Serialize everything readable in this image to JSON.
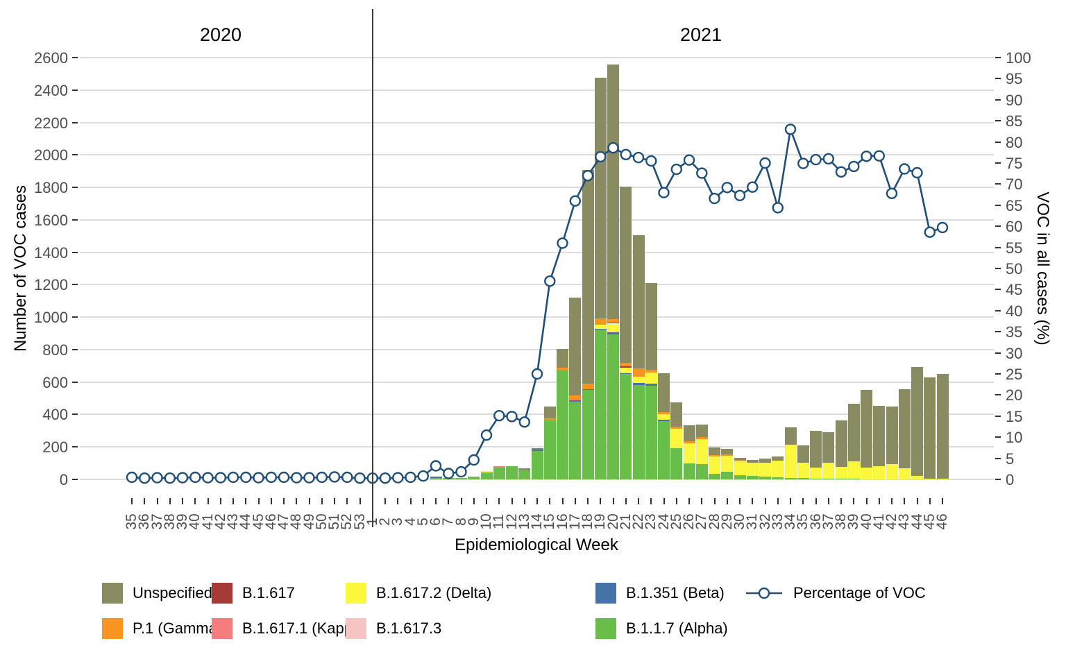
{
  "panels": {
    "left_year": "2020",
    "right_year": "2021"
  },
  "axes": {
    "x": {
      "title": "Epidemiological Week"
    },
    "y_left": {
      "title": "Number of VOC cases",
      "ticks": [
        0,
        200,
        400,
        600,
        800,
        1000,
        1200,
        1400,
        1600,
        1800,
        2000,
        2200,
        2400,
        2600
      ]
    },
    "y_right": {
      "title": "VOC in all cases (%)",
      "ticks": [
        0,
        5,
        10,
        15,
        20,
        25,
        30,
        35,
        40,
        45,
        50,
        55,
        60,
        65,
        70,
        75,
        80,
        85,
        90,
        95,
        100
      ]
    }
  },
  "legend": {
    "items": [
      {
        "label": "Unspecified",
        "color": "#8A8B60",
        "type": "swatch"
      },
      {
        "label": "P.1 (Gamma)",
        "color": "#F8941F",
        "type": "swatch"
      },
      {
        "label": "B.1.617",
        "color": "#A53A35",
        "type": "swatch"
      },
      {
        "label": "B.1.617.1 (Kappa)",
        "color": "#F57D7D",
        "type": "swatch"
      },
      {
        "label": "B.1.617.2 (Delta)",
        "color": "#FAF73C",
        "type": "swatch"
      },
      {
        "label": "B.1.617.3",
        "color": "#F8C3C3",
        "type": "swatch"
      },
      {
        "label": "B.1.351 (Beta)",
        "color": "#4573A7",
        "type": "swatch"
      },
      {
        "label": "B.1.1.7 (Alpha)",
        "color": "#69BE4A",
        "type": "swatch"
      },
      {
        "label": "Percentage of VOC",
        "color": "#1F4E79",
        "type": "line"
      }
    ]
  },
  "chart_data": [
    {
      "type": "bar",
      "stacked": true,
      "ylabel": "Number of VOC cases",
      "ylim": [
        0,
        2600
      ],
      "grid": true,
      "year_groups": [
        {
          "label": "2020",
          "weeks": "35-53"
        },
        {
          "label": "2021",
          "weeks": "1-46"
        }
      ],
      "categories": [
        "35",
        "36",
        "37",
        "38",
        "39",
        "40",
        "41",
        "42",
        "43",
        "44",
        "45",
        "46",
        "47",
        "48",
        "49",
        "50",
        "51",
        "52",
        "53",
        "1",
        "2",
        "3",
        "4",
        "5",
        "6",
        "7",
        "8",
        "9",
        "10",
        "11",
        "12",
        "13",
        "14",
        "15",
        "16",
        "17",
        "18",
        "19",
        "20",
        "21",
        "22",
        "23",
        "24",
        "25",
        "26",
        "27",
        "28",
        "29",
        "30",
        "31",
        "32",
        "33",
        "34",
        "35",
        "36",
        "37",
        "38",
        "39",
        "40",
        "41",
        "42",
        "43",
        "44",
        "45",
        "46"
      ],
      "series": [
        {
          "name": "B.1.1.7 (Alpha)",
          "color": "#69BE4A",
          "values": [
            0,
            0,
            0,
            0,
            0,
            0,
            0,
            0,
            0,
            0,
            0,
            0,
            0,
            0,
            0,
            0,
            0,
            3,
            0,
            0,
            0,
            0,
            0,
            0,
            7,
            7,
            9,
            16,
            42,
            72,
            81,
            57,
            175,
            365,
            670,
            480,
            550,
            922,
            895,
            650,
            582,
            579,
            361,
            192,
            100,
            93,
            36,
            47,
            26,
            21,
            16,
            11,
            10,
            7,
            6,
            4,
            4,
            3,
            0,
            0,
            0,
            0,
            0,
            0,
            0
          ]
        },
        {
          "name": "B.1.351 (Beta)",
          "color": "#4573A7",
          "values": [
            0,
            0,
            0,
            0,
            0,
            0,
            0,
            0,
            0,
            0,
            0,
            0,
            0,
            0,
            0,
            0,
            0,
            0,
            0,
            0,
            0,
            0,
            0,
            0,
            10,
            0,
            0,
            0,
            0,
            0,
            0,
            0,
            8,
            0,
            0,
            6,
            6,
            8,
            10,
            7,
            14,
            13,
            7,
            0,
            0,
            0,
            0,
            0,
            0,
            0,
            0,
            0,
            0,
            0,
            0,
            0,
            0,
            0,
            0,
            0,
            0,
            0,
            0,
            0,
            0
          ]
        },
        {
          "name": "B.1.617.3",
          "color": "#F8C3C3",
          "values": [
            0,
            0,
            0,
            0,
            0,
            0,
            0,
            0,
            0,
            0,
            0,
            0,
            0,
            0,
            0,
            0,
            0,
            0,
            0,
            0,
            0,
            0,
            0,
            0,
            0,
            0,
            0,
            0,
            0,
            0,
            0,
            0,
            0,
            0,
            0,
            0,
            0,
            0,
            4,
            2,
            0,
            0,
            0,
            0,
            0,
            0,
            0,
            0,
            0,
            0,
            0,
            0,
            0,
            0,
            0,
            0,
            0,
            0,
            0,
            0,
            0,
            0,
            0,
            0,
            0
          ]
        },
        {
          "name": "B.1.617.2 (Delta)",
          "color": "#FAF73C",
          "values": [
            0,
            0,
            0,
            0,
            0,
            0,
            0,
            0,
            0,
            0,
            0,
            0,
            0,
            0,
            0,
            0,
            0,
            0,
            0,
            0,
            0,
            0,
            0,
            0,
            0,
            0,
            0,
            0,
            8,
            0,
            0,
            0,
            0,
            0,
            0,
            0,
            0,
            24,
            51,
            31,
            36,
            66,
            36,
            121,
            123,
            157,
            105,
            98,
            83,
            80,
            88,
            104,
            204,
            97,
            68,
            97,
            74,
            107,
            71,
            80,
            94,
            68,
            21,
            6,
            4
          ]
        },
        {
          "name": "B.1.617.1 (Kappa)",
          "color": "#F57D7D",
          "values": [
            0,
            0,
            0,
            0,
            0,
            0,
            0,
            0,
            0,
            0,
            0,
            0,
            0,
            0,
            0,
            0,
            0,
            0,
            0,
            0,
            0,
            0,
            0,
            0,
            0,
            0,
            0,
            0,
            0,
            10,
            0,
            0,
            0,
            0,
            0,
            5,
            0,
            0,
            0,
            0,
            0,
            0,
            0,
            0,
            0,
            0,
            0,
            0,
            0,
            0,
            0,
            0,
            0,
            0,
            0,
            0,
            0,
            0,
            0,
            0,
            0,
            0,
            0,
            0,
            0
          ]
        },
        {
          "name": "B.1.617",
          "color": "#A53A35",
          "values": [
            0,
            0,
            0,
            0,
            0,
            0,
            0,
            0,
            0,
            0,
            0,
            0,
            0,
            0,
            0,
            0,
            0,
            0,
            0,
            0,
            0,
            0,
            0,
            0,
            0,
            0,
            0,
            0,
            0,
            0,
            0,
            0,
            0,
            0,
            0,
            0,
            0,
            0,
            8,
            7,
            0,
            0,
            0,
            0,
            0,
            0,
            0,
            0,
            0,
            0,
            0,
            0,
            0,
            0,
            0,
            0,
            0,
            0,
            0,
            0,
            0,
            0,
            0,
            0,
            0
          ]
        },
        {
          "name": "P.1 (Gamma)",
          "color": "#F8941F",
          "values": [
            0,
            0,
            0,
            0,
            0,
            0,
            0,
            0,
            0,
            0,
            0,
            0,
            0,
            0,
            0,
            0,
            0,
            0,
            0,
            0,
            0,
            0,
            0,
            0,
            0,
            0,
            0,
            0,
            0,
            0,
            0,
            0,
            0,
            12,
            18,
            25,
            33,
            36,
            20,
            21,
            54,
            17,
            10,
            11,
            14,
            11,
            9,
            9,
            10,
            0,
            0,
            0,
            0,
            0,
            0,
            0,
            0,
            0,
            0,
            0,
            0,
            0,
            0,
            0,
            0
          ]
        },
        {
          "name": "Unspecified",
          "color": "#8A8B60",
          "values": [
            0,
            0,
            0,
            0,
            0,
            0,
            0,
            0,
            0,
            0,
            0,
            0,
            0,
            0,
            0,
            0,
            0,
            0,
            0,
            0,
            0,
            0,
            0,
            0,
            0,
            0,
            0,
            0,
            0,
            0,
            0,
            10,
            10,
            70,
            117,
            604,
            1320,
            1485,
            1570,
            1087,
            819,
            535,
            242,
            150,
            98,
            78,
            47,
            33,
            14,
            17,
            26,
            28,
            107,
            107,
            225,
            191,
            286,
            358,
            479,
            373,
            355,
            488,
            670,
            621,
            645
          ]
        }
      ]
    },
    {
      "type": "line",
      "name": "Percentage of VOC",
      "color": "#1F4E79",
      "marker": "open-circle",
      "axis": "right",
      "ylabel": "VOC in all cases (%)",
      "ylim": [
        0,
        100
      ],
      "values": [
        0.5,
        0.3,
        0.4,
        0.3,
        0.4,
        0.5,
        0.4,
        0.4,
        0.5,
        0.5,
        0.4,
        0.5,
        0.5,
        0.4,
        0.4,
        0.5,
        0.6,
        0.5,
        0.3,
        0.3,
        0.3,
        0.4,
        0.5,
        0.8,
        3.2,
        1.4,
        1.8,
        4.6,
        10.5,
        15.1,
        14.9,
        13.6,
        25,
        47,
        56,
        66,
        72,
        76.5,
        78.6,
        77,
        76.3,
        75.5,
        68,
        73.5,
        75.7,
        72.6,
        66.6,
        69.2,
        67.3,
        69.3,
        75,
        64.4,
        83,
        74.9,
        75.8,
        76,
        72.9,
        74.2,
        76.6,
        76.7,
        67.8,
        73.6,
        72.7,
        58.6,
        59.7
      ]
    }
  ]
}
